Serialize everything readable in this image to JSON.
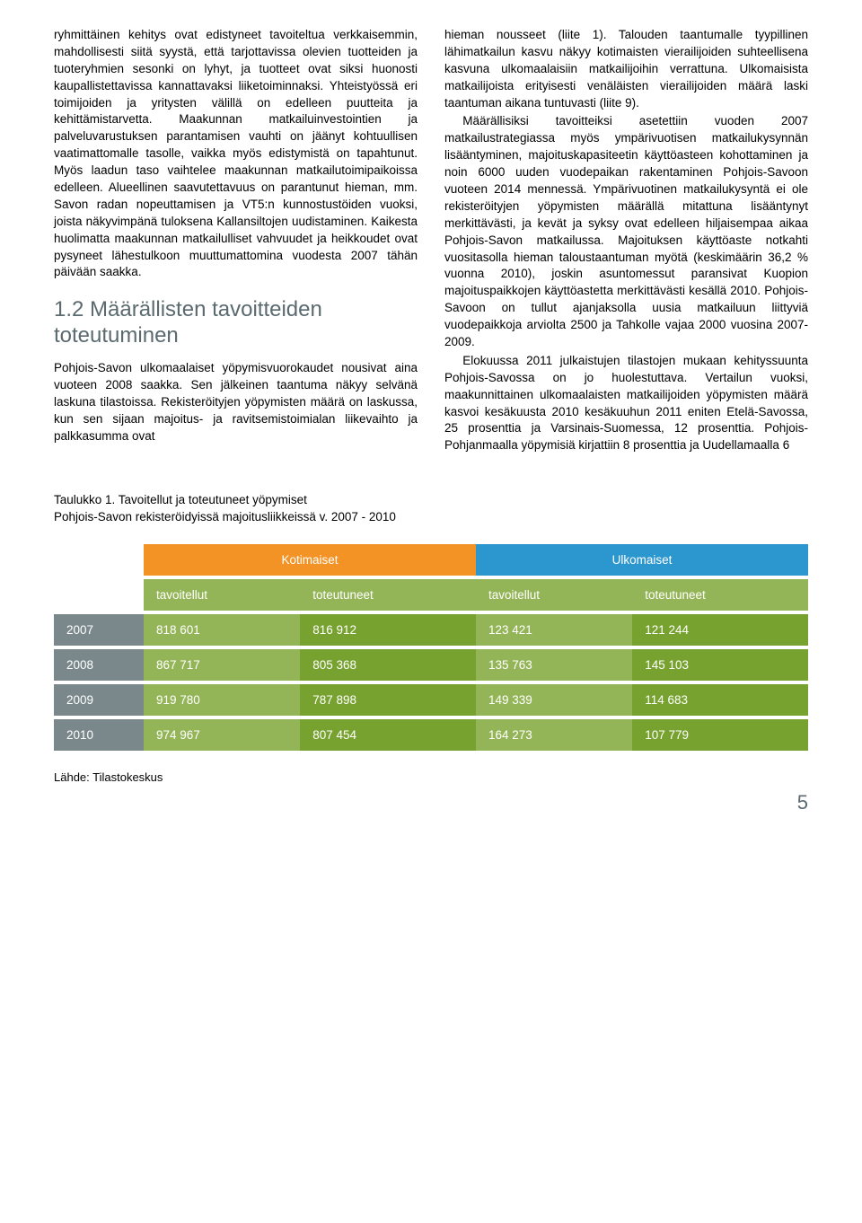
{
  "left_column": {
    "p1": "ryhmittäinen kehitys ovat edistyneet tavoiteltua verkkaisemmin, mahdollisesti siitä syystä, että tarjottavissa olevien tuotteiden ja tuoteryhmien sesonki on lyhyt, ja tuotteet ovat siksi huonosti kaupallistettavissa kannattavaksi liiketoiminnaksi. Yhteistyössä eri toimijoiden ja yritysten välillä on edelleen puutteita ja kehittämistarvetta. Maakunnan matkailuinvestointien ja palveluvarustuksen parantamisen vauhti on jäänyt kohtuullisen vaatimattomalle tasolle, vaikka myös edistymistä on tapahtunut. Myös laadun taso vaihtelee maakunnan matkailutoimipaikoissa edelleen. Alueellinen saavutettavuus on parantunut hieman, mm. Savon radan nopeuttamisen ja VT5:n kunnostustöiden vuoksi, joista näkyvimpänä tuloksena Kallansiltojen uudistaminen. Kaikesta huolimatta maakunnan matkailulliset vahvuudet ja heikkoudet ovat pysyneet lähestulkoon muuttumattomina vuodesta 2007 tähän päivään saakka.",
    "heading": "1.2 Määrällisten tavoitteiden toteutuminen",
    "p2": "Pohjois-Savon ulkomaalaiset yöpymisvuorokaudet nousivat aina vuoteen 2008 saakka. Sen jälkeinen taantuma näkyy selvänä laskuna tilastoissa. Rekisteröityjen yöpymisten määrä on laskussa, kun sen sijaan majoitus- ja ravitsemistoimialan liikevaihto ja palkkasumma ovat"
  },
  "right_column": {
    "p1": "hieman nousseet (liite 1). Talouden taantumalle tyypillinen lähimatkailun kasvu näkyy kotimaisten vierailijoiden suhteellisena kasvuna ulkomaalaisiin matkailijoihin verrattuna. Ulkomaisista matkailijoista erityisesti venäläisten vierailijoiden määrä laski taantuman aikana tuntuvasti (liite 9).",
    "p2": "Määrällisiksi tavoitteiksi asetettiin vuoden 2007 matkailustrategiassa myös ympärivuotisen matkailukysynnän lisääntyminen, majoituskapasiteetin käyttöasteen kohottaminen ja noin 6000 uuden vuodepaikan rakentaminen Pohjois-Savoon vuoteen 2014 mennessä. Ympärivuotinen matkailukysyntä ei ole rekisteröityjen yöpymisten määrällä mitattuna lisääntynyt merkittävästi, ja kevät ja syksy ovat edelleen hiljaisempaa aikaa Pohjois-Savon matkailussa. Majoituksen käyttöaste notkahti vuositasolla hieman taloustaantuman myötä (keskimäärin 36,2 % vuonna 2010), joskin asuntomessut paransivat Kuopion majoituspaikkojen käyttöastetta merkittävästi kesällä 2010. Pohjois-Savoon on tullut ajanjaksolla uusia matkailuun liittyviä vuodepaikkoja arviolta 2500 ja Tahkolle vajaa 2000 vuosina 2007-2009.",
    "p3": "Elokuussa 2011 julkaistujen tilastojen mukaan kehityssuunta Pohjois-Savossa on jo huolestuttava. Vertailun vuoksi, maakunnittainen ulkomaalaisten matkailijoiden yöpymisten määrä kasvoi kesäkuusta 2010 kesäkuuhun 2011 eniten Etelä-Savossa, 25 prosenttia ja Varsinais-Suomessa, 12 prosenttia. Pohjois-Pohjanmaalla yöpymisiä kirjattiin 8 prosenttia ja Uudellamaalla 6"
  },
  "table": {
    "caption_line1": "Taulukko 1. Tavoitellut ja toteutuneet yöpymiset",
    "caption_line2": "Pohjois-Savon rekisteröidyissä majoitusliikkeissä v. 2007 - 2010",
    "group_headers": [
      "Kotimaiset",
      "Ulkomaiset"
    ],
    "sub_headers": [
      "tavoitellut",
      "toteutuneet",
      "tavoitellut",
      "toteutuneet"
    ],
    "rows": [
      {
        "year": "2007",
        "cells": [
          "818  601",
          "816  912",
          "123  421",
          "121  244"
        ]
      },
      {
        "year": "2008",
        "cells": [
          "867  717",
          "805  368",
          "135  763",
          "145  103"
        ]
      },
      {
        "year": "2009",
        "cells": [
          "919  780",
          "787  898",
          "149  339",
          "114  683"
        ]
      },
      {
        "year": "2010",
        "cells": [
          "974  967",
          "807  454",
          "164  273",
          "107  779"
        ]
      }
    ],
    "source": "Lähde: Tilastokeskus",
    "colors": {
      "group_domestic": "#f39325",
      "group_foreign": "#2c96cf",
      "subheader_bg": "#94b557",
      "year_bg": "#7a888c",
      "target_bg": "#94b557",
      "actual_bg": "#78a22f"
    }
  },
  "page_number": "5"
}
